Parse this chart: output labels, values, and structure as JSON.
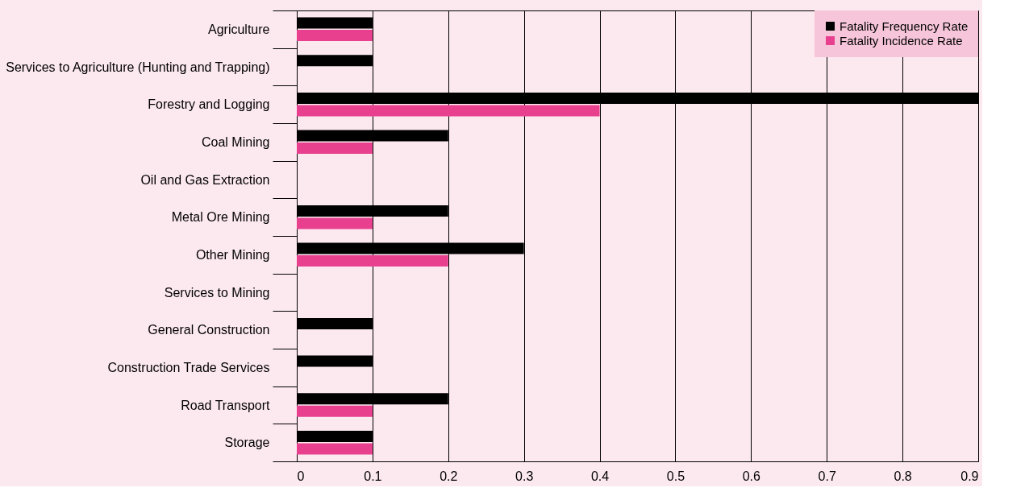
{
  "chart_data": {
    "type": "bar",
    "orientation": "horizontal",
    "categories": [
      "Agriculture",
      "Services to Agriculture (Hunting and Trapping)",
      "Forestry and Logging",
      "Coal Mining",
      "Oil and Gas Extraction",
      "Metal Ore Mining",
      "Other Mining",
      "Services to Mining",
      "General Construction",
      "Construction Trade Services",
      "Road Transport",
      "Storage"
    ],
    "series": [
      {
        "name": "Fatality Frequency Rate",
        "color": "#000000",
        "values": [
          0.1,
          0.1,
          0.9,
          0.2,
          0,
          0.2,
          0.3,
          0,
          0.1,
          0.1,
          0.2,
          0.1
        ]
      },
      {
        "name": "Fatality Incidence Rate",
        "color": "#e8408f",
        "values": [
          0.1,
          0,
          0.4,
          0.1,
          0,
          0.1,
          0.2,
          0,
          0,
          0,
          0.1,
          0.1
        ]
      }
    ],
    "xlim": [
      0,
      0.9
    ],
    "xticks": [
      0,
      0.1,
      0.2,
      0.3,
      0.4,
      0.5,
      0.6,
      0.7,
      0.8,
      0.9
    ],
    "grid": "x",
    "legend": "top right"
  }
}
